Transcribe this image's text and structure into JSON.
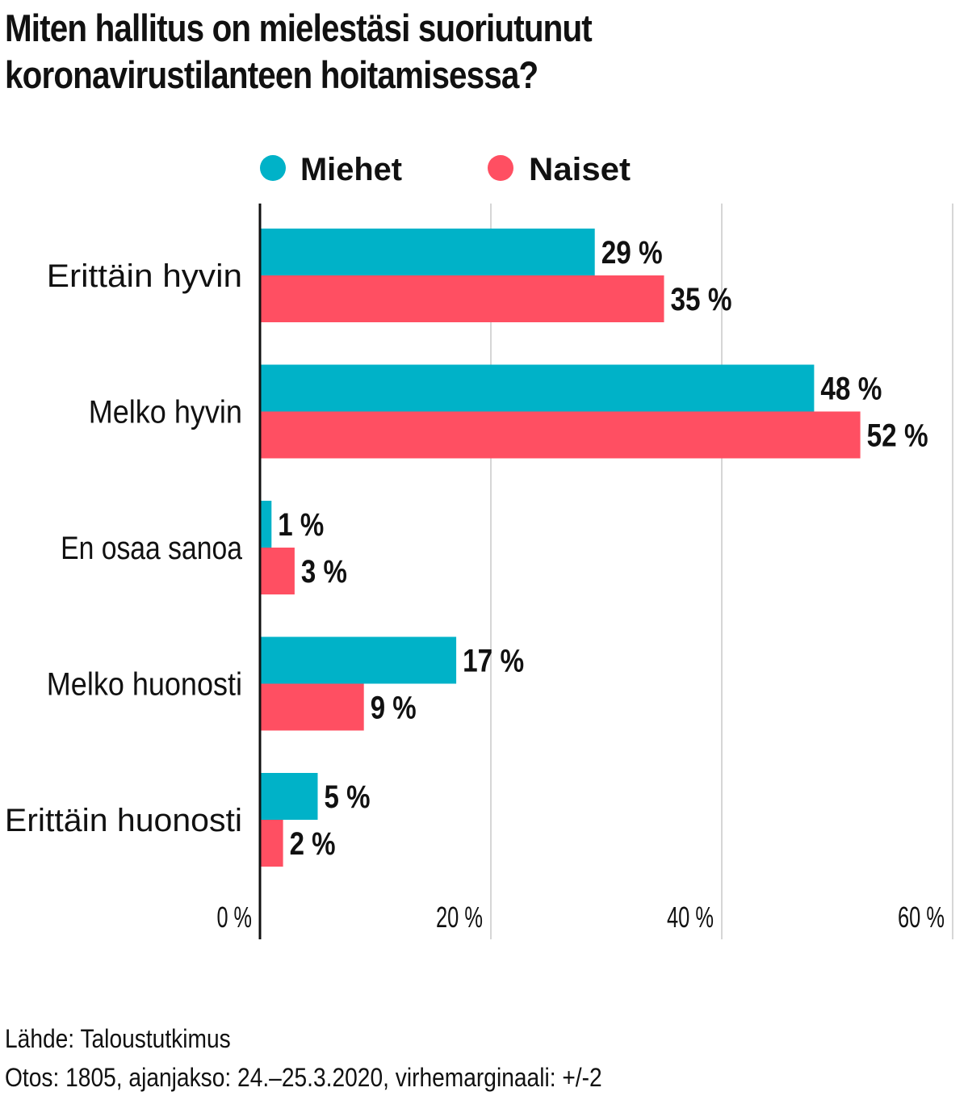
{
  "title_lines": [
    "Miten hallitus on mielestäsi suoriutunut",
    "koronavirustilanteen hoitamisessa?"
  ],
  "footer": {
    "source": "Lähde: Taloustutkimus",
    "sample": "Otos: 1805, ajanjakso: 24.–25.3.2020, virhemarginaali: +/-2"
  },
  "chart_data": {
    "type": "bar",
    "orientation": "horizontal",
    "title": "Miten hallitus on mielestäsi suoriutunut koronavirustilanteen hoitamisessa?",
    "categories": [
      "Erittäin hyvin",
      "Melko hyvin",
      "En osaa sanoa",
      "Melko huonosti",
      "Erittäin huonosti"
    ],
    "series": [
      {
        "name": "Miehet",
        "color": "#00b2c8",
        "values": [
          29,
          48,
          1,
          17,
          5
        ],
        "labels": [
          "29 %",
          "48 %",
          "1 %",
          "17 %",
          "5 %"
        ]
      },
      {
        "name": "Naiset",
        "color": "#ff4f62",
        "values": [
          35,
          52,
          3,
          9,
          2
        ],
        "labels": [
          "35 %",
          "52 %",
          "3 %",
          "9 %",
          "2 %"
        ]
      }
    ],
    "xlim": [
      0,
      60
    ],
    "xticks": [
      0,
      20,
      40,
      60
    ],
    "xtick_labels": [
      "0 %",
      "20 %",
      "40 %",
      "60 %"
    ],
    "grid": true,
    "legend": "top"
  }
}
